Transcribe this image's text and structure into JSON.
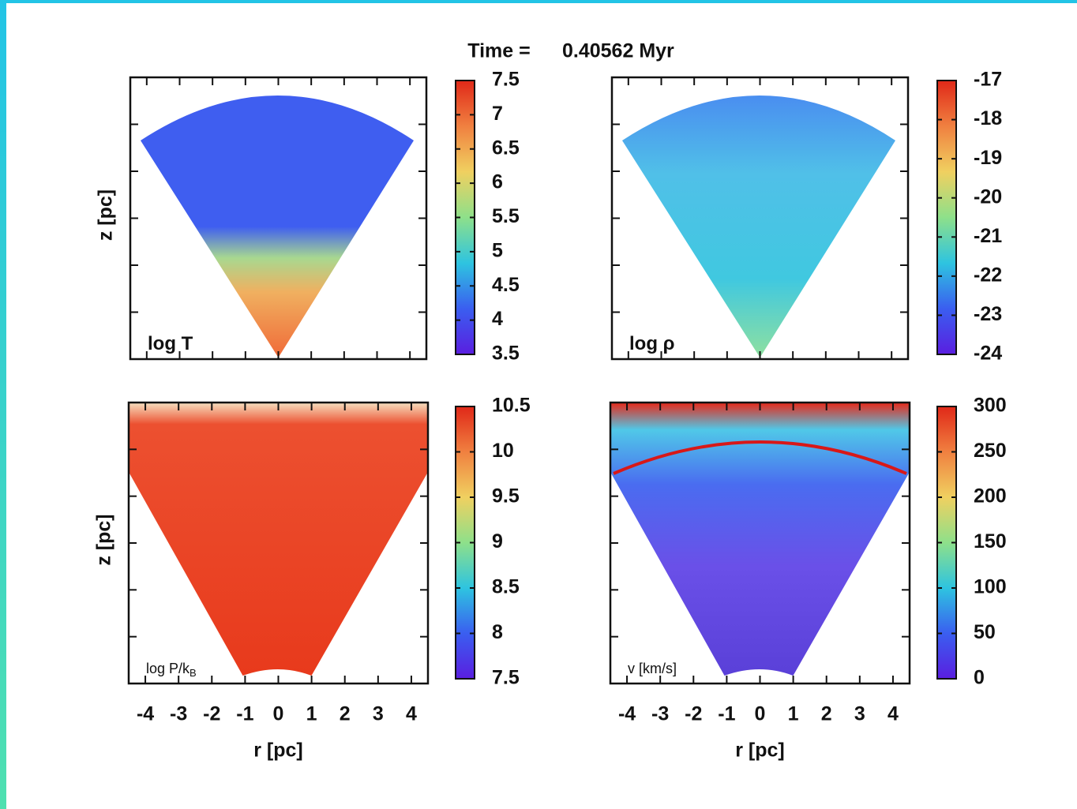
{
  "title": {
    "label": "Time =",
    "value": "0.40562 Myr"
  },
  "chart_data": [
    {
      "type": "heatmap",
      "panel_label": "log T",
      "ylabel": "z [pc]",
      "xlim": [
        -4.5,
        4.5
      ],
      "xticks": [
        -4,
        -3,
        -2,
        -1,
        0,
        1,
        2,
        3,
        4
      ],
      "show_xticklabels": false,
      "colorbar": {
        "lim": [
          3.5,
          7.5
        ],
        "ticks": [
          3.5,
          4,
          4.5,
          5,
          5.5,
          6,
          6.5,
          7,
          7.5
        ]
      },
      "colormap": [
        "#5a1ee0",
        "#3a5ef0",
        "#2ec4e0",
        "#8ee08a",
        "#f0d060",
        "#f08040",
        "#e02818"
      ]
    },
    {
      "type": "heatmap",
      "panel_label": "log ρ",
      "xlim": [
        -4.5,
        4.5
      ],
      "xticks": [
        -4,
        -3,
        -2,
        -1,
        0,
        1,
        2,
        3,
        4
      ],
      "show_xticklabels": false,
      "colorbar": {
        "lim": [
          -24,
          -17
        ],
        "ticks": [
          -24,
          -23,
          -22,
          -21,
          -20,
          -19,
          -18,
          -17
        ]
      },
      "colormap": [
        "#5a1ee0",
        "#3a5ef0",
        "#2ec4e0",
        "#8ee08a",
        "#f0d060",
        "#f08040",
        "#e02818"
      ]
    },
    {
      "type": "heatmap",
      "panel_label": "log P/k",
      "panel_label_sub": "B",
      "ylabel": "z [pc]",
      "xlabel": "r [pc]",
      "xlim": [
        -4.5,
        4.5
      ],
      "xticks": [
        -4,
        -3,
        -2,
        -1,
        0,
        1,
        2,
        3,
        4
      ],
      "show_xticklabels": true,
      "colorbar": {
        "lim": [
          7.5,
          10.5
        ],
        "ticks": [
          7.5,
          8,
          8.5,
          9,
          9.5,
          10,
          10.5
        ]
      },
      "colormap": [
        "#5a1ee0",
        "#3a5ef0",
        "#2ec4e0",
        "#8ee08a",
        "#f0d060",
        "#f08040",
        "#e02818"
      ]
    },
    {
      "type": "heatmap",
      "panel_label": "v [km/s]",
      "xlabel": "r [pc]",
      "xlim": [
        -4.5,
        4.5
      ],
      "xticks": [
        -4,
        -3,
        -2,
        -1,
        0,
        1,
        2,
        3,
        4
      ],
      "show_xticklabels": true,
      "colorbar": {
        "lim": [
          0,
          300
        ],
        "ticks": [
          0,
          50,
          100,
          150,
          200,
          250,
          300
        ]
      },
      "colormap": [
        "#5a1ee0",
        "#3a5ef0",
        "#2ec4e0",
        "#8ee08a",
        "#f0d060",
        "#f08040",
        "#e02818"
      ]
    }
  ]
}
